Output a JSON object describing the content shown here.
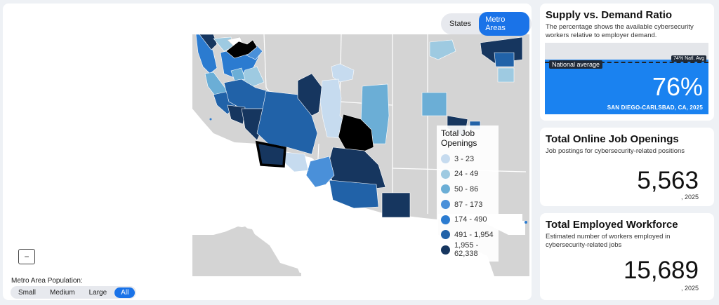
{
  "map": {
    "toggle": {
      "states_label": "States",
      "metro_label": "Metro Areas",
      "active": "Metro Areas"
    },
    "legend": {
      "title": "Total Job Openings",
      "bins": [
        {
          "label": "3 - 23",
          "color": "#c6dbef"
        },
        {
          "label": "24 - 49",
          "color": "#9ecae1"
        },
        {
          "label": "50 - 86",
          "color": "#6baed6"
        },
        {
          "label": "87 - 173",
          "color": "#4a90d9"
        },
        {
          "label": "174 - 490",
          "color": "#2b7bd0"
        },
        {
          "label": "491 - 1,954",
          "color": "#2162a8"
        },
        {
          "label": "1,955 - 62,338",
          "color": "#16365f"
        }
      ]
    },
    "zoom_out_label": "−",
    "population": {
      "label": "Metro Area Population:",
      "options": [
        "Small",
        "Medium",
        "Large",
        "All"
      ],
      "active": "All"
    }
  },
  "ratio_card": {
    "title": "Supply vs. Demand Ratio",
    "subtitle": "The percentage shows the available cybersecurity workers relative to employer demand.",
    "value_label": "76%",
    "value_fraction": 0.76,
    "national_avg_fraction": 0.74,
    "national_avg_label": "National average",
    "national_avg_tag": "74% Natl. Avg",
    "location": "SAN DIEGO-CARLSBAD, CA, 2025"
  },
  "openings_card": {
    "title": "Total Online Job Openings",
    "subtitle": "Job postings for cybersecurity-related positions",
    "value": "5,563",
    "year": ", 2025"
  },
  "workforce_card": {
    "title": "Total Employed Workforce",
    "subtitle": "Estimated number of workers employed in cybersecurity-related jobs",
    "value": "15,689",
    "year": ", 2025"
  },
  "colors": {
    "accent": "#1a73e8",
    "ratio_fill": "#1a82f0",
    "land": "#d4d4d4",
    "selected_outline": "#000000"
  }
}
